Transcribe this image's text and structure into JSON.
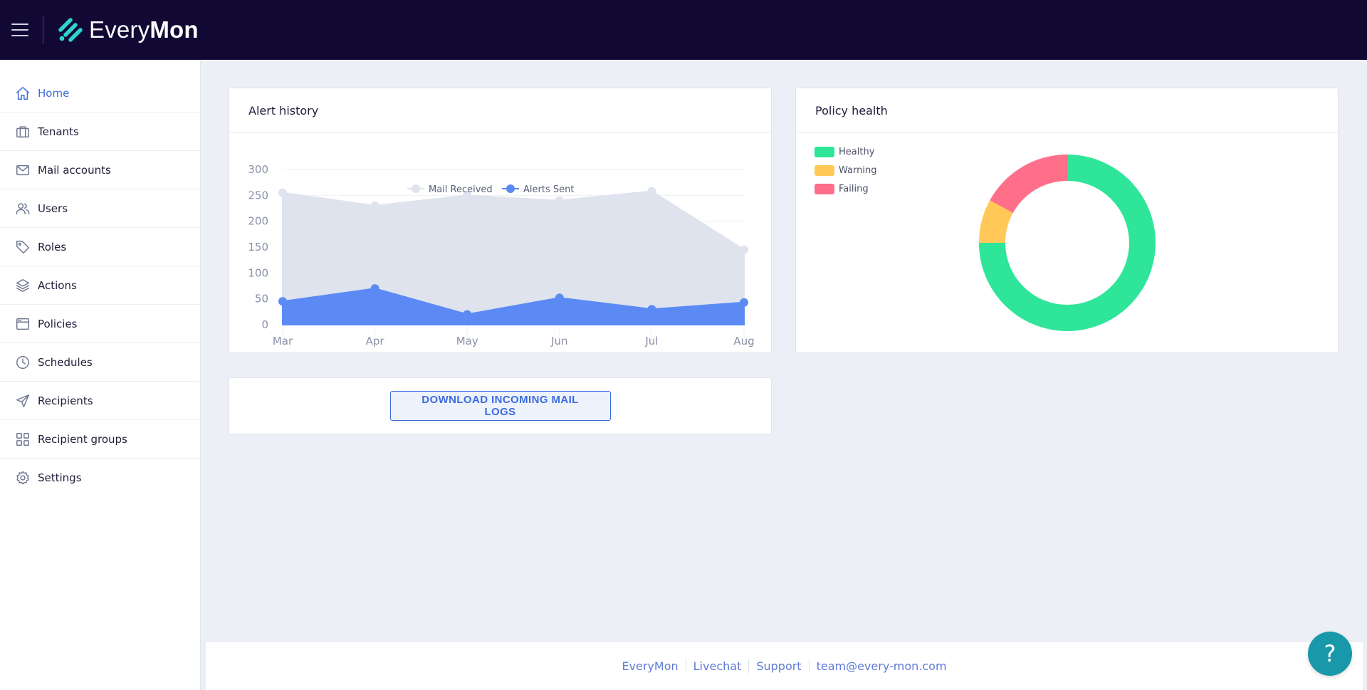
{
  "app": {
    "brand_light": "Every",
    "brand_bold": "Mon"
  },
  "sidebar": {
    "items": [
      {
        "label": "Home",
        "icon": "home-icon",
        "active": true
      },
      {
        "label": "Tenants",
        "icon": "briefcase-icon",
        "active": false
      },
      {
        "label": "Mail accounts",
        "icon": "mail-icon",
        "active": false
      },
      {
        "label": "Users",
        "icon": "users-icon",
        "active": false
      },
      {
        "label": "Roles",
        "icon": "tag-icon",
        "active": false
      },
      {
        "label": "Actions",
        "icon": "layers-icon",
        "active": false
      },
      {
        "label": "Policies",
        "icon": "browser-icon",
        "active": false
      },
      {
        "label": "Schedules",
        "icon": "clock-icon",
        "active": false
      },
      {
        "label": "Recipients",
        "icon": "send-icon",
        "active": false
      },
      {
        "label": "Recipient groups",
        "icon": "grid-icon",
        "active": false
      },
      {
        "label": "Settings",
        "icon": "gear-icon",
        "active": false
      }
    ]
  },
  "alert_history": {
    "title": "Alert history"
  },
  "policy_health": {
    "title": "Policy health"
  },
  "download": {
    "label": "DOWNLOAD INCOMING MAIL LOGS"
  },
  "footer": {
    "links": [
      "EveryMon",
      "Livechat",
      "Support",
      "team@every-mon.com"
    ]
  },
  "help": {
    "label": "?"
  },
  "colors": {
    "accent": "#3b6be0",
    "topbar": "#120834",
    "mail_received": "#dfe3ee",
    "alerts_sent": "#5b8af5",
    "healthy": "#2ee59a",
    "warning": "#ffc857",
    "failing": "#ff6f8a"
  },
  "chart_data": [
    {
      "type": "area",
      "categories": [
        "Mar",
        "Apr",
        "May",
        "Jun",
        "Jul",
        "Aug"
      ],
      "series": [
        {
          "name": "Mail Received",
          "values": [
            255,
            230,
            250,
            240,
            258,
            145
          ],
          "color": "#dfe3ee"
        },
        {
          "name": "Alerts Sent",
          "values": [
            45,
            70,
            20,
            52,
            30,
            43
          ],
          "color": "#5b8af5"
        }
      ],
      "yticks": [
        0,
        50,
        100,
        150,
        200,
        250,
        300
      ],
      "ylim": [
        0,
        300
      ],
      "legend": "top-center",
      "grid": true
    },
    {
      "type": "pie",
      "donut": true,
      "labels": [
        "Healthy",
        "Warning",
        "Failing"
      ],
      "values": [
        75,
        8,
        17
      ],
      "colors": [
        "#2ee59a",
        "#ffc857",
        "#ff6f8a"
      ],
      "legend": "top-left"
    }
  ]
}
